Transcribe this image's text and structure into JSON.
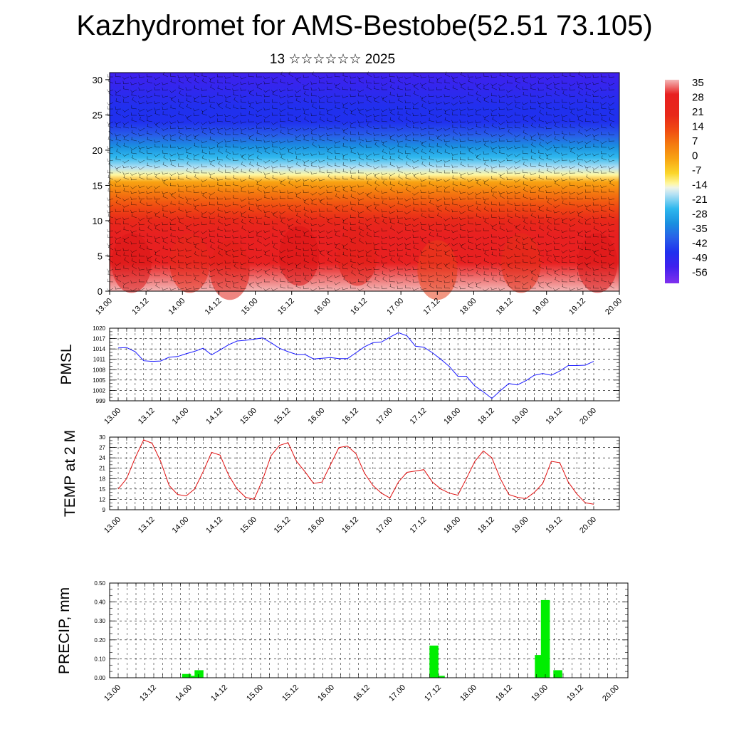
{
  "title": "Kazhydromet for AMS-Bestobe(52.51 73.105)",
  "subtitle": "13 ☆☆☆☆☆☆ 2025",
  "time_labels": [
    "13.00",
    "13.12",
    "14.00",
    "14.12",
    "15.00",
    "15.12",
    "16.00",
    "16.12",
    "17.00",
    "17.12",
    "18.00",
    "18.12",
    "19.00",
    "19.12",
    "20.00"
  ],
  "colors": {
    "pmsl_line": "#1a1aff",
    "temp_line": "#e01010",
    "precip_bar": "#00ee00",
    "grid": "#000000"
  },
  "chart_data": [
    {
      "id": "cross-section",
      "type": "heatmap",
      "title": "",
      "xlabel": "",
      "ylabel": "",
      "yticks": [
        0,
        5,
        10,
        15,
        20,
        25,
        30
      ],
      "ylim": [
        0,
        31
      ],
      "colorbar": {
        "labels": [
          "35",
          "28",
          "21",
          "14",
          "7",
          "0",
          "-7",
          "-14",
          "-21",
          "-28",
          "-35",
          "-42",
          "-49",
          "-56"
        ],
        "stops": [
          {
            "value": 38,
            "color": "#f4b8b8"
          },
          {
            "value": 31,
            "color": "#e82020"
          },
          {
            "value": 21,
            "color": "#e8281a"
          },
          {
            "value": 14,
            "color": "#f04a12"
          },
          {
            "value": 7,
            "color": "#f47a10"
          },
          {
            "value": 0,
            "color": "#f8a412"
          },
          {
            "value": -7,
            "color": "#fbd62a"
          },
          {
            "value": -12,
            "color": "#fff7a0"
          },
          {
            "value": -14,
            "color": "#eef4e8"
          },
          {
            "value": -17,
            "color": "#b8e2f4"
          },
          {
            "value": -24,
            "color": "#2fb8ee"
          },
          {
            "value": -31,
            "color": "#1a90e0"
          },
          {
            "value": -38,
            "color": "#2860e8"
          },
          {
            "value": -45,
            "color": "#2030ee"
          },
          {
            "value": -52,
            "color": "#4020ee"
          },
          {
            "value": -60,
            "color": "#8030ee"
          }
        ]
      }
    },
    {
      "id": "pmsl",
      "type": "line",
      "ylabel": "PMSL",
      "ylim": [
        999,
        1020
      ],
      "yticks": [
        999,
        1002,
        1005,
        1008,
        1011,
        1014,
        1017,
        1020
      ],
      "series": [
        {
          "values": [
            1014.3,
            1014.4,
            1013.2,
            1010.6,
            1010.4,
            1010.5,
            1011.6,
            1011.8,
            1012.6,
            1013.3,
            1014.2,
            1012.3,
            1013.7,
            1015.2,
            1016.3,
            1016.5,
            1016.8,
            1017.2,
            1015.8,
            1014.2,
            1013.2,
            1012.4,
            1012.4,
            1011.1,
            1011.3,
            1011.5,
            1011.2,
            1011.2,
            1012.9,
            1014.6,
            1015.8,
            1016.0,
            1017.4,
            1018.7,
            1017.8,
            1014.8,
            1014.5,
            1012.9,
            1011.0,
            1008.9,
            1006.1,
            1006.1,
            1003.3,
            1001.6,
            999.7,
            1001.9,
            1004.0,
            1003.6,
            1004.8,
            1006.4,
            1006.9,
            1006.4,
            1007.6,
            1009.2,
            1009.2,
            1009.3,
            1010.4
          ]
        }
      ]
    },
    {
      "id": "temp",
      "type": "line",
      "ylabel": "TEMP at 2 M",
      "ylim": [
        9,
        30
      ],
      "yticks": [
        9,
        12,
        15,
        18,
        21,
        24,
        27,
        30
      ],
      "series": [
        {
          "values": [
            15.0,
            18.0,
            24.0,
            29.2,
            28.2,
            23.0,
            16.0,
            13.4,
            13.0,
            15.0,
            20.0,
            25.6,
            24.8,
            19.0,
            15.0,
            12.6,
            12.0,
            17.6,
            24.6,
            27.6,
            28.4,
            23.0,
            20.0,
            16.6,
            17.0,
            22.0,
            27.0,
            27.4,
            25.2,
            19.6,
            16.0,
            13.8,
            12.4,
            17.0,
            19.8,
            20.2,
            20.6,
            17.0,
            15.0,
            13.8,
            13.2,
            18.0,
            23.0,
            26.0,
            24.0,
            18.0,
            13.4,
            12.6,
            12.2,
            14.0,
            16.6,
            23.0,
            22.6,
            17.0,
            13.6,
            11.0,
            10.6
          ]
        }
      ]
    },
    {
      "id": "precip",
      "type": "bar",
      "ylabel": "PRECIP, mm",
      "ylim": [
        0,
        0.5
      ],
      "ytick_labels": [
        "0.00",
        "0.10",
        "0.20",
        "0.30",
        "0.40",
        "0.50"
      ],
      "bars": [
        {
          "x": 1.92,
          "value": 0.02
        },
        {
          "x": 2.1,
          "value": 0.01
        },
        {
          "x": 2.27,
          "value": 0.04
        },
        {
          "x": 8.87,
          "value": 0.17
        },
        {
          "x": 9.05,
          "value": 0.01
        },
        {
          "x": 11.83,
          "value": 0.12
        },
        {
          "x": 12.0,
          "value": 0.41
        },
        {
          "x": 12.35,
          "value": 0.04
        }
      ]
    }
  ]
}
